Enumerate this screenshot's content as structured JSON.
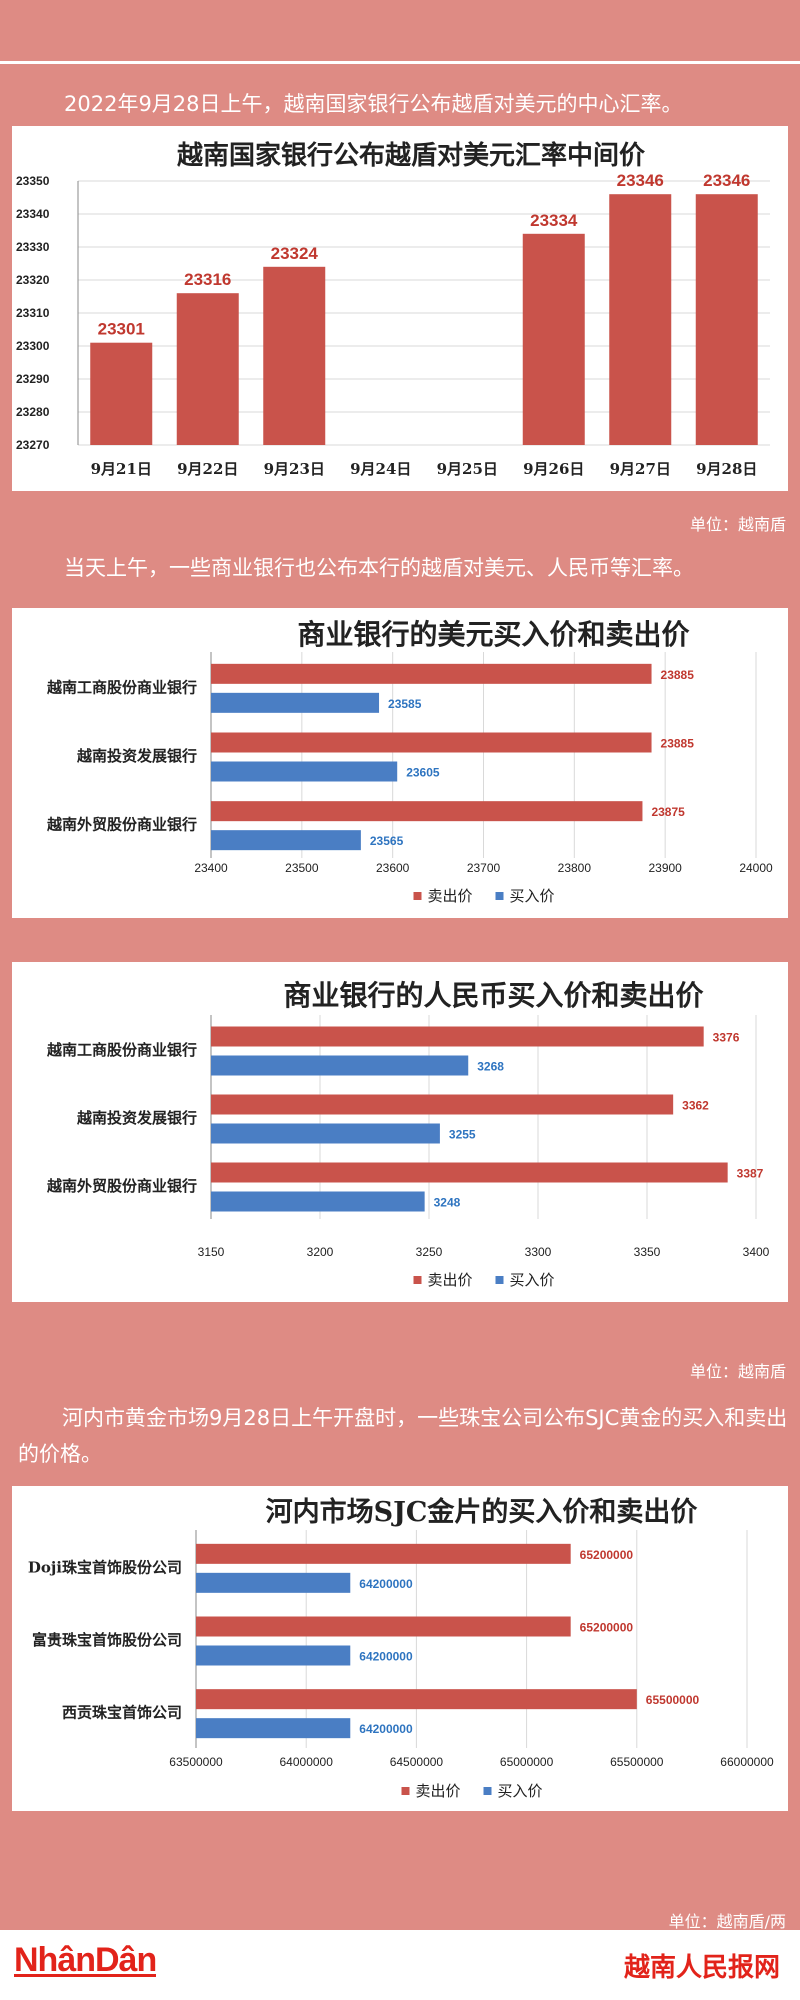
{
  "intro": {
    "para1": "2022年9月28日上午，越南国家银行公布越盾对美元的中心汇率。",
    "para2": "当天上午，一些商业银行也公布本行的越盾对美元、人民币等汇率。",
    "para3": "河内市黄金市场9月28日上午开盘时，一些珠宝公司公布SJC黄金的买入和卖出的价格。"
  },
  "units": {
    "unit1": "单位：越南盾",
    "unit2": "单位：越南盾",
    "unit3": "单位：越南盾/两"
  },
  "legend": {
    "sell": "卖出价",
    "buy": "买入价"
  },
  "colors": {
    "sell": "#C9534B",
    "buy": "#4A7EC4",
    "grid": "#D9D9D9"
  },
  "footer": {
    "logo_left": "NhânDân",
    "logo_right": "越南人民报网"
  },
  "chart_data": [
    {
      "type": "bar",
      "title": "越南国家银行公布越盾对美元汇率中间价",
      "categories": [
        "9月21日",
        "9月22日",
        "9月23日",
        "9月24日",
        "9月25日",
        "9月26日",
        "9月27日",
        "9月28日"
      ],
      "values": [
        23301,
        23316,
        23324,
        null,
        null,
        23334,
        23346,
        23346
      ],
      "labels": [
        "23301",
        "23316",
        "23324",
        "",
        "",
        "23334",
        "23346",
        "23346"
      ],
      "yticks": [
        "23270",
        "23280",
        "23290",
        "23300",
        "23310",
        "23320",
        "23330",
        "23340",
        "23350"
      ],
      "ylim": [
        23270,
        23350
      ],
      "grid": true
    },
    {
      "type": "bar",
      "orientation": "horizontal",
      "title": "商业银行的美元买入价和卖出价",
      "categories": [
        "越南工商股份商业银行",
        "越南投资发展银行",
        "越南外贸股份商业银行"
      ],
      "series": [
        {
          "name": "卖出价",
          "values": [
            23885,
            23885,
            23875
          ]
        },
        {
          "name": "买入价",
          "values": [
            23585,
            23605,
            23565
          ]
        }
      ],
      "xticks": [
        "23400",
        "23500",
        "23600",
        "23700",
        "23800",
        "23900",
        "24000"
      ],
      "xlim": [
        23400,
        24000
      ],
      "grid": true,
      "legend": "bottom"
    },
    {
      "type": "bar",
      "orientation": "horizontal",
      "title": "商业银行的人民币买入价和卖出价",
      "categories": [
        "越南工商股份商业银行",
        "越南投资发展银行",
        "越南外贸股份商业银行"
      ],
      "series": [
        {
          "name": "卖出价",
          "values": [
            3376,
            3362,
            3387
          ]
        },
        {
          "name": "买入价",
          "values": [
            3268,
            3255,
            3248
          ]
        }
      ],
      "xticks": [
        "3150",
        "3200",
        "3250",
        "3300",
        "3350",
        "3400"
      ],
      "xlim": [
        3150,
        3400
      ],
      "grid": true,
      "legend": "bottom"
    },
    {
      "type": "bar",
      "orientation": "horizontal",
      "title": "河内市场SJC金片的买入价和卖出价",
      "categories": [
        "Doji珠宝首饰股份公司",
        "富贵珠宝首饰股份公司",
        "西贡珠宝首饰公司"
      ],
      "series": [
        {
          "name": "卖出价",
          "values": [
            65200000,
            65200000,
            65500000
          ]
        },
        {
          "name": "买入价",
          "values": [
            64200000,
            64200000,
            64200000
          ]
        }
      ],
      "xticks": [
        "63500000",
        "64000000",
        "64500000",
        "65000000",
        "65500000",
        "66000000"
      ],
      "xlim": [
        63500000,
        66000000
      ],
      "grid": true,
      "legend": "bottom"
    }
  ]
}
